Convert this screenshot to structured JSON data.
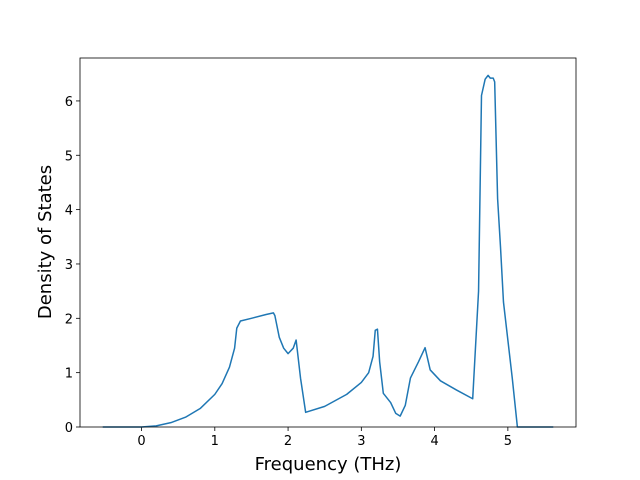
{
  "chart_data": {
    "type": "line",
    "xlabel": "Frequency (THz)",
    "ylabel": "Density of States",
    "color": "#1f77b4",
    "x": [
      -0.53,
      0,
      0.2,
      0.4,
      0.6,
      0.8,
      1.0,
      1.1,
      1.2,
      1.27,
      1.3,
      1.35,
      1.5,
      1.7,
      1.8,
      1.82,
      1.88,
      1.94,
      2.0,
      2.07,
      2.11,
      2.17,
      2.24,
      2.5,
      2.8,
      3.0,
      3.1,
      3.16,
      3.19,
      3.22,
      3.25,
      3.3,
      3.4,
      3.47,
      3.53,
      3.6,
      3.67,
      3.78,
      3.87,
      3.94,
      4.08,
      4.3,
      4.52,
      4.6,
      4.64,
      4.69,
      4.73,
      4.76,
      4.8,
      4.82,
      4.86,
      4.9,
      4.94,
      5.06,
      5.13,
      5.62
    ],
    "values": [
      0,
      0,
      0.02,
      0.08,
      0.18,
      0.34,
      0.6,
      0.8,
      1.1,
      1.45,
      1.82,
      1.95,
      2.0,
      2.07,
      2.1,
      2.05,
      1.65,
      1.45,
      1.35,
      1.45,
      1.6,
      0.9,
      0.27,
      0.38,
      0.6,
      0.82,
      1.0,
      1.3,
      1.78,
      1.8,
      1.2,
      0.62,
      0.45,
      0.25,
      0.2,
      0.4,
      0.9,
      1.2,
      1.46,
      1.05,
      0.85,
      0.68,
      0.52,
      2.5,
      6.1,
      6.4,
      6.47,
      6.42,
      6.42,
      6.35,
      4.2,
      3.3,
      2.3,
      0.9,
      0,
      0
    ],
    "xlim": [
      -0.84,
      5.93
    ],
    "ylim": [
      0,
      6.79
    ],
    "xticks": [
      0,
      1,
      2,
      3,
      4,
      5
    ],
    "yticks": [
      0,
      1,
      2,
      3,
      4,
      5,
      6
    ]
  }
}
